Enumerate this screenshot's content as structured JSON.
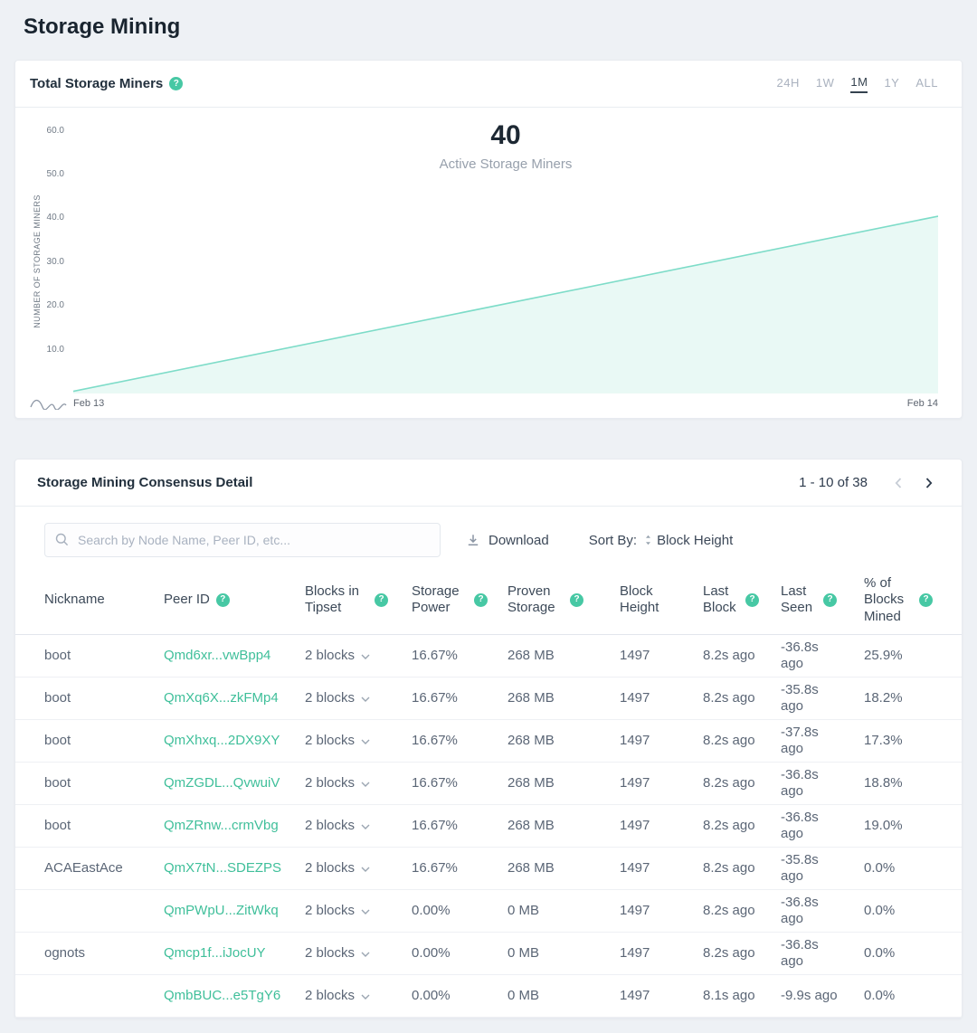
{
  "page": {
    "title": "Storage Mining"
  },
  "colors": {
    "accent": "#47c8a4",
    "link": "#3fbf9a",
    "line": "#7ddcc8",
    "fill": "#e9f9f5"
  },
  "chart_card": {
    "title": "Total Storage Miners",
    "ranges": [
      "24H",
      "1W",
      "1M",
      "1Y",
      "ALL"
    ],
    "active_range": "1M"
  },
  "chart_data": {
    "type": "area",
    "title": "Total Storage Miners",
    "x": [
      "Feb 13",
      "Feb 14"
    ],
    "values": [
      0.5,
      40.5
    ],
    "ylabel": "NUMBER OF STORAGE MINERS",
    "yticks": [
      10,
      20,
      30,
      40,
      50,
      60
    ],
    "ylim": [
      0,
      62
    ],
    "grid": false,
    "legend": false,
    "annotation_value": "40",
    "annotation_label": "Active Storage Miners"
  },
  "table_card": {
    "title": "Storage Mining Consensus Detail",
    "pagination": "1 - 10 of 38",
    "search_placeholder": "Search by Node Name, Peer ID, etc...",
    "download_label": "Download",
    "sort_by_label": "Sort By:",
    "sort_value": "Block Height",
    "columns": [
      {
        "key": "nickname",
        "label": "Nickname",
        "help": false
      },
      {
        "key": "peer-id",
        "label": "Peer ID",
        "help": true
      },
      {
        "key": "blocks-in-tipset",
        "label": "Blocks in Tipset",
        "help": true
      },
      {
        "key": "storage-power",
        "label": "Storage Power",
        "help": true
      },
      {
        "key": "proven-storage",
        "label": "Proven Storage",
        "help": true
      },
      {
        "key": "block-height",
        "label": "Block Height",
        "help": false
      },
      {
        "key": "last-block",
        "label": "Last Block",
        "help": true
      },
      {
        "key": "last-seen",
        "label": "Last Seen",
        "help": true
      },
      {
        "key": "pct-blocks-mined",
        "label": "% of Blocks Mined",
        "help": true
      }
    ],
    "rows": [
      {
        "nickname": "boot",
        "peer_id": "Qmd6xr...vwBpp4",
        "blocks": "2 blocks",
        "storage_power": "16.67%",
        "proven_storage": "268 MB",
        "block_height": "1497",
        "last_block": "8.2s ago",
        "last_seen": "-36.8s ago",
        "pct": "25.9%"
      },
      {
        "nickname": "boot",
        "peer_id": "QmXq6X...zkFMp4",
        "blocks": "2 blocks",
        "storage_power": "16.67%",
        "proven_storage": "268 MB",
        "block_height": "1497",
        "last_block": "8.2s ago",
        "last_seen": "-35.8s ago",
        "pct": "18.2%"
      },
      {
        "nickname": "boot",
        "peer_id": "QmXhxq...2DX9XY",
        "blocks": "2 blocks",
        "storage_power": "16.67%",
        "proven_storage": "268 MB",
        "block_height": "1497",
        "last_block": "8.2s ago",
        "last_seen": "-37.8s ago",
        "pct": "17.3%"
      },
      {
        "nickname": "boot",
        "peer_id": "QmZGDL...QvwuiV",
        "blocks": "2 blocks",
        "storage_power": "16.67%",
        "proven_storage": "268 MB",
        "block_height": "1497",
        "last_block": "8.2s ago",
        "last_seen": "-36.8s ago",
        "pct": "18.8%"
      },
      {
        "nickname": "boot",
        "peer_id": "QmZRnw...crmVbg",
        "blocks": "2 blocks",
        "storage_power": "16.67%",
        "proven_storage": "268 MB",
        "block_height": "1497",
        "last_block": "8.2s ago",
        "last_seen": "-36.8s ago",
        "pct": "19.0%"
      },
      {
        "nickname": "ACAEastAce",
        "peer_id": "QmX7tN...SDEZPS",
        "blocks": "2 blocks",
        "storage_power": "16.67%",
        "proven_storage": "268 MB",
        "block_height": "1497",
        "last_block": "8.2s ago",
        "last_seen": "-35.8s ago",
        "pct": "0.0%"
      },
      {
        "nickname": "",
        "peer_id": "QmPWpU...ZitWkq",
        "blocks": "2 blocks",
        "storage_power": "0.00%",
        "proven_storage": "0 MB",
        "block_height": "1497",
        "last_block": "8.2s ago",
        "last_seen": "-36.8s ago",
        "pct": "0.0%"
      },
      {
        "nickname": "ognots",
        "peer_id": "Qmcp1f...iJocUY",
        "blocks": "2 blocks",
        "storage_power": "0.00%",
        "proven_storage": "0 MB",
        "block_height": "1497",
        "last_block": "8.2s ago",
        "last_seen": "-36.8s ago",
        "pct": "0.0%"
      },
      {
        "nickname": "",
        "peer_id": "QmbBUC...e5TgY6",
        "blocks": "2 blocks",
        "storage_power": "0.00%",
        "proven_storage": "0 MB",
        "block_height": "1497",
        "last_block": "8.1s ago",
        "last_seen": "-9.9s ago",
        "pct": "0.0%"
      }
    ]
  }
}
